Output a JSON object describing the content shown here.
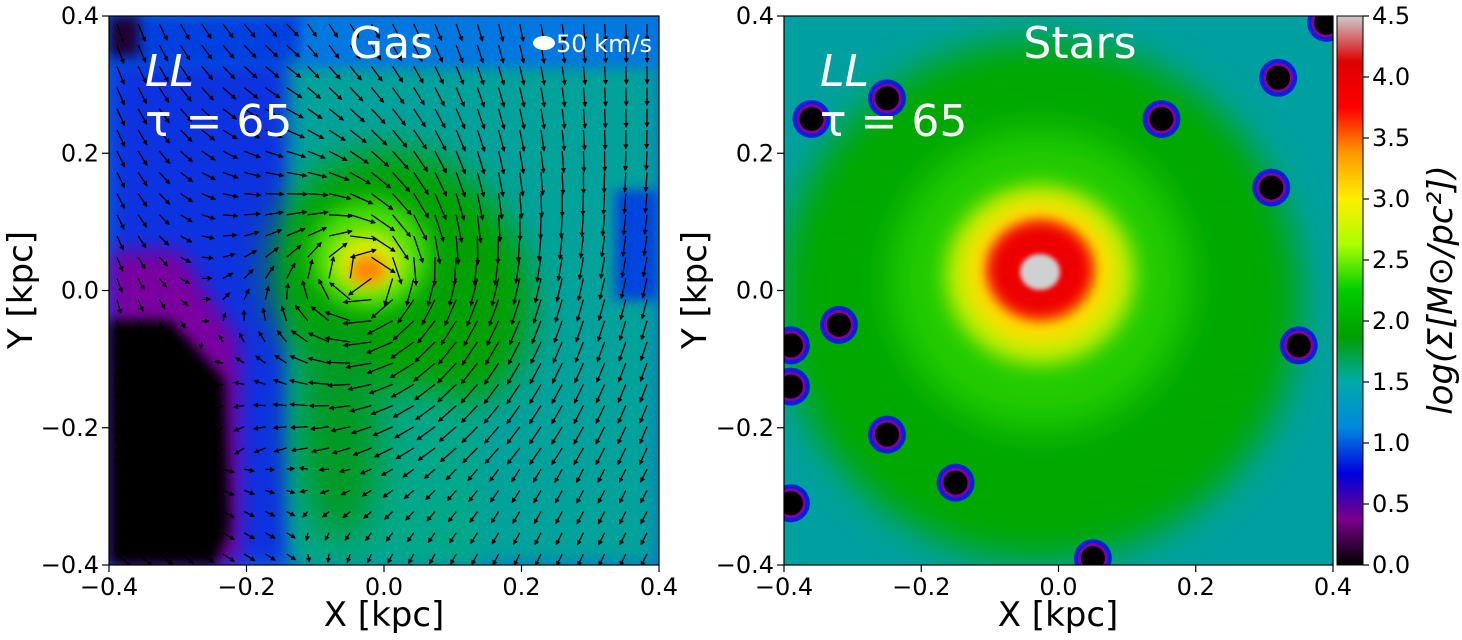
{
  "chart_data": [
    {
      "type": "heatmap",
      "panel": "gas",
      "title": "Gas",
      "annotation_line1": "LL",
      "annotation_line2": "τ = 65",
      "xlabel": "X [kpc]",
      "ylabel": "Y [kpc]",
      "xlim": [
        -0.4,
        0.4
      ],
      "ylim": [
        -0.4,
        0.4
      ],
      "x_ticks": [
        "−0.4",
        "−0.2",
        "0.0",
        "0.2",
        "0.4"
      ],
      "y_ticks": [
        "−0.4",
        "−0.2",
        "0.0",
        "0.2",
        "0.4"
      ],
      "quiver_key": {
        "label": "50 km/s",
        "value": 50
      },
      "density_peak": {
        "x": -0.03,
        "y": 0.03,
        "log_sigma": 3.6
      },
      "vortex_center": {
        "x": -0.02,
        "y": 0.02
      },
      "colors": {
        "cmap": "nipy_spectral",
        "arrow": "#000000"
      }
    },
    {
      "type": "heatmap",
      "panel": "stars",
      "title": "Stars",
      "annotation_line1": "LL",
      "annotation_line2": "τ = 65",
      "xlabel": "X [kpc]",
      "ylabel": "Y [kpc]",
      "xlim": [
        -0.4,
        0.4
      ],
      "ylim": [
        -0.4,
        0.4
      ],
      "x_ticks": [
        "−0.4",
        "−0.2",
        "0.0",
        "0.2",
        "0.4"
      ],
      "y_ticks": [
        "−0.4",
        "−0.2",
        "0.0",
        "0.2",
        "0.4"
      ],
      "density_peak": {
        "x": -0.03,
        "y": 0.03,
        "log_sigma": 4.5
      },
      "voids": [
        {
          "x": -0.25,
          "y": 0.28
        },
        {
          "x": -0.36,
          "y": 0.25
        },
        {
          "x": 0.15,
          "y": 0.25
        },
        {
          "x": 0.32,
          "y": 0.31
        },
        {
          "x": 0.31,
          "y": 0.15
        },
        {
          "x": 0.39,
          "y": 0.39
        },
        {
          "x": -0.32,
          "y": -0.05
        },
        {
          "x": -0.39,
          "y": -0.08
        },
        {
          "x": -0.39,
          "y": -0.14
        },
        {
          "x": 0.35,
          "y": -0.08
        },
        {
          "x": -0.25,
          "y": -0.21
        },
        {
          "x": -0.15,
          "y": -0.28
        },
        {
          "x": -0.39,
          "y": -0.31
        },
        {
          "x": 0.05,
          "y": -0.39
        }
      ]
    }
  ],
  "colorbar": {
    "label": "log(Σ[M⊙/pc²])",
    "range": [
      0.0,
      4.5
    ],
    "ticks": [
      "0.0",
      "0.5",
      "1.0",
      "1.5",
      "2.0",
      "2.5",
      "3.0",
      "3.5",
      "4.0",
      "4.5"
    ],
    "stops": [
      "#000000",
      "#7a008a",
      "#0000dd",
      "#0088dd",
      "#00aaaa",
      "#009f00",
      "#00cc00",
      "#aaff00",
      "#ffee00",
      "#ff9900",
      "#ff0000",
      "#dd0000",
      "#cccccc"
    ]
  }
}
